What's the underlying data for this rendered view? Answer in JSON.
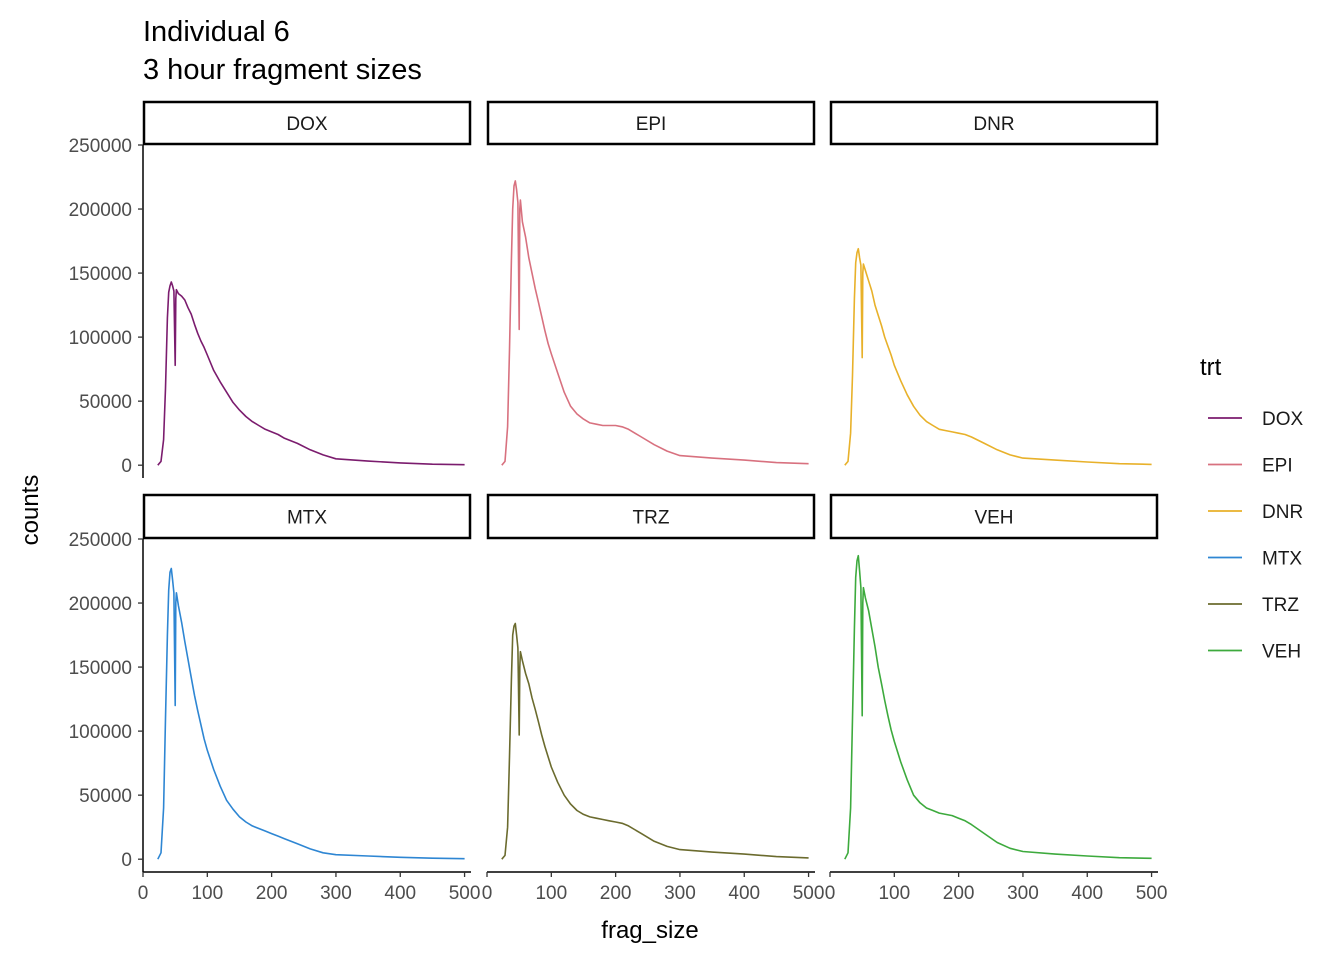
{
  "chart_data": {
    "type": "line",
    "title": "Individual 6",
    "subtitle": "3 hour fragment sizes",
    "xlabel": "frag_size",
    "ylabel": "counts",
    "xlim": [
      0,
      510
    ],
    "ylim": [
      -10000,
      250000
    ],
    "x_ticks": [
      0,
      100,
      200,
      300,
      400,
      500
    ],
    "y_ticks": [
      0,
      50000,
      100000,
      150000,
      200000,
      250000
    ],
    "x_tick_labels": [
      "0",
      "100",
      "200",
      "300",
      "400",
      "500"
    ],
    "y_tick_labels": [
      "0",
      "50000",
      "100000",
      "150000",
      "200000",
      "250000"
    ],
    "legend_title": "trt",
    "legend_position": "right",
    "grid": false,
    "facet_rows": 2,
    "facet_cols": 3,
    "series": [
      {
        "name": "DOX",
        "color": "#7B1C6E",
        "points": [
          [
            23,
            0
          ],
          [
            28,
            3000
          ],
          [
            32,
            20000
          ],
          [
            35,
            60000
          ],
          [
            38,
            115000
          ],
          [
            40,
            135000
          ],
          [
            42,
            140000
          ],
          [
            44,
            143000
          ],
          [
            46,
            140000
          ],
          [
            48,
            136000
          ],
          [
            50,
            78000
          ],
          [
            51,
            130000
          ],
          [
            52,
            137000
          ],
          [
            55,
            134000
          ],
          [
            60,
            132000
          ],
          [
            65,
            129000
          ],
          [
            70,
            123000
          ],
          [
            75,
            118000
          ],
          [
            80,
            110000
          ],
          [
            85,
            103000
          ],
          [
            90,
            97000
          ],
          [
            95,
            92000
          ],
          [
            100,
            86000
          ],
          [
            110,
            74000
          ],
          [
            120,
            65000
          ],
          [
            130,
            57000
          ],
          [
            140,
            49000
          ],
          [
            150,
            43000
          ],
          [
            160,
            38000
          ],
          [
            170,
            34000
          ],
          [
            180,
            31000
          ],
          [
            190,
            28000
          ],
          [
            200,
            26000
          ],
          [
            210,
            24000
          ],
          [
            220,
            21000
          ],
          [
            240,
            17000
          ],
          [
            260,
            12000
          ],
          [
            280,
            8000
          ],
          [
            300,
            5000
          ],
          [
            350,
            3200
          ],
          [
            400,
            1800
          ],
          [
            450,
            800
          ],
          [
            500,
            400
          ]
        ]
      },
      {
        "name": "EPI",
        "color": "#D8717F",
        "points": [
          [
            23,
            0
          ],
          [
            28,
            3000
          ],
          [
            32,
            30000
          ],
          [
            35,
            90000
          ],
          [
            38,
            160000
          ],
          [
            40,
            200000
          ],
          [
            42,
            218000
          ],
          [
            44,
            222000
          ],
          [
            46,
            215000
          ],
          [
            48,
            205000
          ],
          [
            50,
            106000
          ],
          [
            51,
            200000
          ],
          [
            52,
            207000
          ],
          [
            55,
            190000
          ],
          [
            60,
            178000
          ],
          [
            65,
            162000
          ],
          [
            70,
            150000
          ],
          [
            75,
            138000
          ],
          [
            80,
            127000
          ],
          [
            85,
            116000
          ],
          [
            90,
            105000
          ],
          [
            95,
            95000
          ],
          [
            100,
            87000
          ],
          [
            110,
            72000
          ],
          [
            120,
            57000
          ],
          [
            130,
            46000
          ],
          [
            140,
            40000
          ],
          [
            150,
            36000
          ],
          [
            160,
            33000
          ],
          [
            170,
            32000
          ],
          [
            180,
            31000
          ],
          [
            190,
            31000
          ],
          [
            200,
            31000
          ],
          [
            210,
            30000
          ],
          [
            220,
            28000
          ],
          [
            240,
            22000
          ],
          [
            260,
            16000
          ],
          [
            280,
            11000
          ],
          [
            300,
            7500
          ],
          [
            350,
            5500
          ],
          [
            400,
            4000
          ],
          [
            450,
            2000
          ],
          [
            500,
            1200
          ]
        ]
      },
      {
        "name": "DNR",
        "color": "#E8B12A",
        "points": [
          [
            23,
            0
          ],
          [
            28,
            3000
          ],
          [
            32,
            25000
          ],
          [
            35,
            70000
          ],
          [
            38,
            130000
          ],
          [
            40,
            158000
          ],
          [
            42,
            166000
          ],
          [
            44,
            169000
          ],
          [
            46,
            162000
          ],
          [
            48,
            156000
          ],
          [
            50,
            84000
          ],
          [
            51,
            150000
          ],
          [
            52,
            157000
          ],
          [
            55,
            152000
          ],
          [
            60,
            144000
          ],
          [
            65,
            136000
          ],
          [
            70,
            125000
          ],
          [
            75,
            117000
          ],
          [
            80,
            109000
          ],
          [
            85,
            100000
          ],
          [
            90,
            93000
          ],
          [
            95,
            86000
          ],
          [
            100,
            78000
          ],
          [
            110,
            66000
          ],
          [
            120,
            55000
          ],
          [
            130,
            46000
          ],
          [
            140,
            39000
          ],
          [
            150,
            34000
          ],
          [
            160,
            31000
          ],
          [
            170,
            28000
          ],
          [
            180,
            27000
          ],
          [
            190,
            26000
          ],
          [
            200,
            25000
          ],
          [
            210,
            24000
          ],
          [
            220,
            22000
          ],
          [
            240,
            17000
          ],
          [
            260,
            12000
          ],
          [
            280,
            8000
          ],
          [
            300,
            5500
          ],
          [
            350,
            4000
          ],
          [
            400,
            2500
          ],
          [
            450,
            1200
          ],
          [
            500,
            600
          ]
        ]
      },
      {
        "name": "MTX",
        "color": "#2E86D3",
        "points": [
          [
            23,
            0
          ],
          [
            28,
            5000
          ],
          [
            32,
            40000
          ],
          [
            35,
            110000
          ],
          [
            38,
            175000
          ],
          [
            40,
            210000
          ],
          [
            42,
            224000
          ],
          [
            44,
            227000
          ],
          [
            46,
            218000
          ],
          [
            48,
            208000
          ],
          [
            50,
            120000
          ],
          [
            51,
            200000
          ],
          [
            52,
            208000
          ],
          [
            55,
            198000
          ],
          [
            60,
            185000
          ],
          [
            65,
            170000
          ],
          [
            70,
            156000
          ],
          [
            75,
            142000
          ],
          [
            80,
            128000
          ],
          [
            85,
            116000
          ],
          [
            90,
            105000
          ],
          [
            95,
            94000
          ],
          [
            100,
            85000
          ],
          [
            110,
            70000
          ],
          [
            120,
            57000
          ],
          [
            130,
            46000
          ],
          [
            140,
            39000
          ],
          [
            150,
            33000
          ],
          [
            160,
            29000
          ],
          [
            170,
            26000
          ],
          [
            180,
            24000
          ],
          [
            190,
            22000
          ],
          [
            200,
            20000
          ],
          [
            210,
            18000
          ],
          [
            220,
            16000
          ],
          [
            240,
            12000
          ],
          [
            260,
            8000
          ],
          [
            280,
            5000
          ],
          [
            300,
            3500
          ],
          [
            350,
            2500
          ],
          [
            400,
            1500
          ],
          [
            450,
            800
          ],
          [
            500,
            400
          ]
        ]
      },
      {
        "name": "TRZ",
        "color": "#6B6B2E",
        "points": [
          [
            23,
            0
          ],
          [
            28,
            3000
          ],
          [
            32,
            25000
          ],
          [
            35,
            80000
          ],
          [
            38,
            140000
          ],
          [
            40,
            175000
          ],
          [
            42,
            182000
          ],
          [
            44,
            184000
          ],
          [
            46,
            175000
          ],
          [
            48,
            165000
          ],
          [
            50,
            97000
          ],
          [
            51,
            150000
          ],
          [
            52,
            162000
          ],
          [
            55,
            155000
          ],
          [
            60,
            145000
          ],
          [
            65,
            137000
          ],
          [
            70,
            126000
          ],
          [
            75,
            117000
          ],
          [
            80,
            107000
          ],
          [
            85,
            97000
          ],
          [
            90,
            88000
          ],
          [
            95,
            80000
          ],
          [
            100,
            72000
          ],
          [
            110,
            60000
          ],
          [
            120,
            50000
          ],
          [
            130,
            43000
          ],
          [
            140,
            38000
          ],
          [
            150,
            35000
          ],
          [
            160,
            33000
          ],
          [
            170,
            32000
          ],
          [
            180,
            31000
          ],
          [
            190,
            30000
          ],
          [
            200,
            29000
          ],
          [
            210,
            28000
          ],
          [
            220,
            26000
          ],
          [
            240,
            20000
          ],
          [
            260,
            14000
          ],
          [
            280,
            10000
          ],
          [
            300,
            7500
          ],
          [
            350,
            5500
          ],
          [
            400,
            4000
          ],
          [
            450,
            2000
          ],
          [
            500,
            1000
          ]
        ]
      },
      {
        "name": "VEH",
        "color": "#3DAA3D",
        "points": [
          [
            23,
            0
          ],
          [
            28,
            5000
          ],
          [
            32,
            40000
          ],
          [
            35,
            110000
          ],
          [
            38,
            180000
          ],
          [
            40,
            220000
          ],
          [
            42,
            233000
          ],
          [
            44,
            237000
          ],
          [
            46,
            225000
          ],
          [
            48,
            212000
          ],
          [
            50,
            112000
          ],
          [
            51,
            200000
          ],
          [
            52,
            212000
          ],
          [
            55,
            204000
          ],
          [
            60,
            194000
          ],
          [
            65,
            180000
          ],
          [
            70,
            166000
          ],
          [
            75,
            150000
          ],
          [
            80,
            137000
          ],
          [
            85,
            124000
          ],
          [
            90,
            112000
          ],
          [
            95,
            101000
          ],
          [
            100,
            92000
          ],
          [
            110,
            76000
          ],
          [
            120,
            62000
          ],
          [
            130,
            50000
          ],
          [
            140,
            44000
          ],
          [
            150,
            40000
          ],
          [
            160,
            38000
          ],
          [
            170,
            36000
          ],
          [
            180,
            35000
          ],
          [
            190,
            34000
          ],
          [
            200,
            32000
          ],
          [
            210,
            30000
          ],
          [
            220,
            27000
          ],
          [
            240,
            20000
          ],
          [
            260,
            13000
          ],
          [
            280,
            8500
          ],
          [
            300,
            6000
          ],
          [
            350,
            4000
          ],
          [
            400,
            2500
          ],
          [
            450,
            1200
          ],
          [
            500,
            700
          ]
        ]
      }
    ]
  }
}
